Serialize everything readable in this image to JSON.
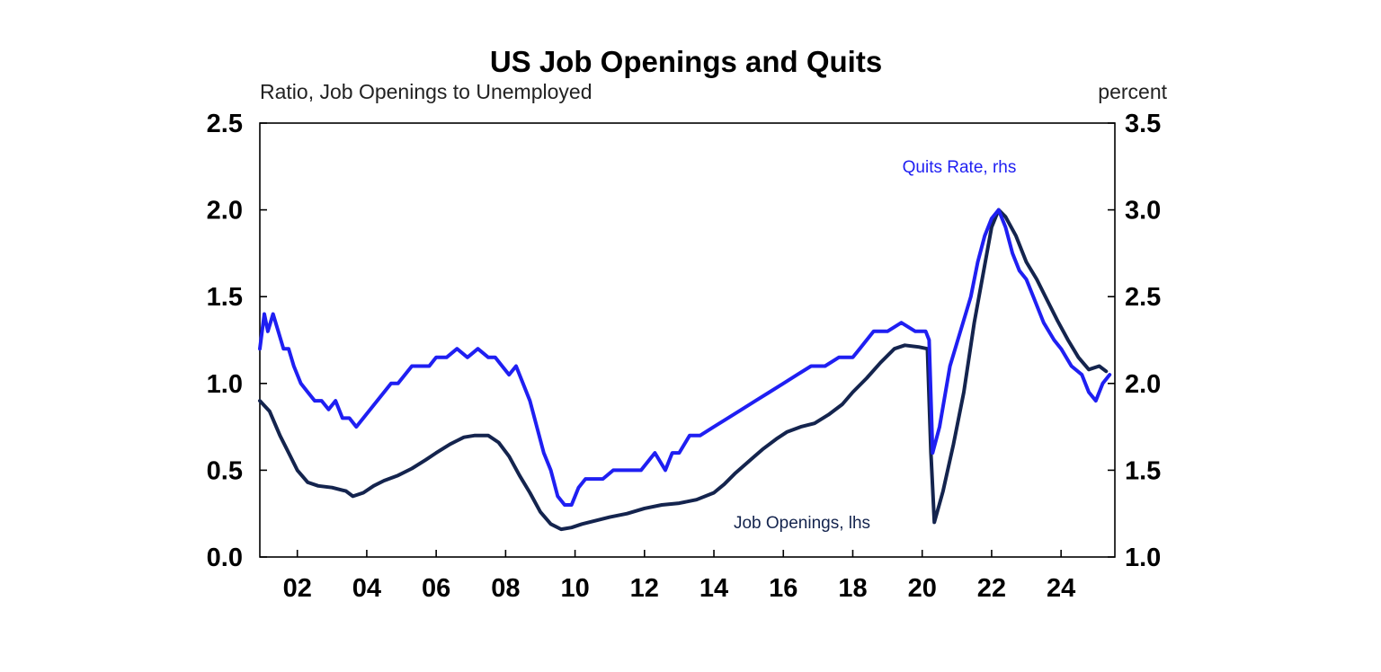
{
  "chart_data": {
    "type": "line",
    "title": "US Job Openings and Quits",
    "left_axis_label": "Ratio, Job Openings to Unemployed",
    "right_axis_label": "percent",
    "x_range": [
      2000.92,
      2025.55
    ],
    "x_ticks": [
      2002,
      2004,
      2006,
      2008,
      2010,
      2012,
      2014,
      2016,
      2018,
      2020,
      2022,
      2024
    ],
    "x_tick_labels": [
      "02",
      "04",
      "06",
      "08",
      "10",
      "12",
      "14",
      "16",
      "18",
      "20",
      "22",
      "24"
    ],
    "y_left": {
      "range": [
        0,
        2.5
      ],
      "ticks": [
        "0.0",
        "0.5",
        "1.0",
        "1.5",
        "2.0",
        "2.5"
      ]
    },
    "y_right": {
      "range": [
        1.0,
        3.5
      ],
      "ticks": [
        "1.0",
        "1.5",
        "2.0",
        "2.5",
        "3.0",
        "3.5"
      ]
    },
    "grid": false,
    "colors": {
      "job_openings": "#14244e",
      "quits_rate": "#1f1ff2",
      "axis": "#000000"
    },
    "annotations": [
      {
        "text": "Quits Rate, rhs",
        "series": "quits_rate"
      },
      {
        "text": "Job Openings, lhs",
        "series": "job_openings"
      }
    ],
    "series": [
      {
        "name": "Job Openings, lhs",
        "axis": "left",
        "x": [
          2000.92,
          2001.2,
          2001.5,
          2001.8,
          2002.0,
          2002.3,
          2002.6,
          2003.0,
          2003.4,
          2003.6,
          2003.9,
          2004.2,
          2004.5,
          2004.9,
          2005.3,
          2005.7,
          2006.0,
          2006.4,
          2006.8,
          2007.1,
          2007.5,
          2007.8,
          2008.1,
          2008.4,
          2008.7,
          2009.0,
          2009.3,
          2009.6,
          2009.9,
          2010.2,
          2010.6,
          2011.0,
          2011.5,
          2012.0,
          2012.5,
          2013.0,
          2013.5,
          2014.0,
          2014.3,
          2014.6,
          2015.0,
          2015.4,
          2015.8,
          2016.1,
          2016.5,
          2016.9,
          2017.3,
          2017.7,
          2018.0,
          2018.4,
          2018.8,
          2019.2,
          2019.5,
          2019.9,
          2020.15,
          2020.25,
          2020.35,
          2020.6,
          2020.9,
          2021.2,
          2021.5,
          2021.8,
          2022.0,
          2022.2,
          2022.4,
          2022.7,
          2023.0,
          2023.3,
          2023.6,
          2023.9,
          2024.2,
          2024.5,
          2024.8,
          2025.1,
          2025.3
        ],
        "values": [
          0.9,
          0.84,
          0.7,
          0.58,
          0.5,
          0.43,
          0.41,
          0.4,
          0.38,
          0.35,
          0.37,
          0.41,
          0.44,
          0.47,
          0.51,
          0.56,
          0.6,
          0.65,
          0.69,
          0.7,
          0.7,
          0.66,
          0.58,
          0.47,
          0.37,
          0.26,
          0.19,
          0.16,
          0.17,
          0.19,
          0.21,
          0.23,
          0.25,
          0.28,
          0.3,
          0.31,
          0.33,
          0.37,
          0.42,
          0.48,
          0.55,
          0.62,
          0.68,
          0.72,
          0.75,
          0.77,
          0.82,
          0.88,
          0.95,
          1.03,
          1.12,
          1.2,
          1.22,
          1.21,
          1.2,
          0.6,
          0.2,
          0.38,
          0.65,
          0.95,
          1.35,
          1.68,
          1.9,
          2.0,
          1.96,
          1.85,
          1.7,
          1.6,
          1.48,
          1.36,
          1.25,
          1.15,
          1.08,
          1.1,
          1.07
        ]
      },
      {
        "name": "Quits Rate, rhs",
        "axis": "right",
        "x": [
          2000.92,
          2001.05,
          2001.15,
          2001.3,
          2001.45,
          2001.6,
          2001.75,
          2001.9,
          2002.1,
          2002.3,
          2002.5,
          2002.7,
          2002.9,
          2003.1,
          2003.3,
          2003.5,
          2003.7,
          2003.9,
          2004.1,
          2004.3,
          2004.5,
          2004.7,
          2004.9,
          2005.1,
          2005.3,
          2005.6,
          2005.8,
          2006.0,
          2006.3,
          2006.6,
          2006.9,
          2007.2,
          2007.5,
          2007.7,
          2007.9,
          2008.1,
          2008.3,
          2008.5,
          2008.7,
          2008.9,
          2009.1,
          2009.3,
          2009.5,
          2009.7,
          2009.9,
          2010.1,
          2010.3,
          2010.5,
          2010.8,
          2011.1,
          2011.5,
          2011.9,
          2012.3,
          2012.6,
          2012.8,
          2013.0,
          2013.3,
          2013.6,
          2014.0,
          2014.4,
          2014.8,
          2015.2,
          2015.6,
          2016.0,
          2016.4,
          2016.8,
          2017.2,
          2017.6,
          2018.0,
          2018.2,
          2018.6,
          2019.0,
          2019.4,
          2019.8,
          2020.1,
          2020.2,
          2020.3,
          2020.5,
          2020.8,
          2021.1,
          2021.4,
          2021.6,
          2021.8,
          2022.0,
          2022.2,
          2022.4,
          2022.6,
          2022.8,
          2023.0,
          2023.2,
          2023.5,
          2023.8,
          2024.0,
          2024.3,
          2024.6,
          2024.8,
          2025.0,
          2025.2,
          2025.4
        ],
        "values": [
          2.2,
          2.4,
          2.3,
          2.4,
          2.3,
          2.2,
          2.2,
          2.1,
          2.0,
          1.95,
          1.9,
          1.9,
          1.85,
          1.9,
          1.8,
          1.8,
          1.75,
          1.8,
          1.85,
          1.9,
          1.95,
          2.0,
          2.0,
          2.05,
          2.1,
          2.1,
          2.1,
          2.15,
          2.15,
          2.2,
          2.15,
          2.2,
          2.15,
          2.15,
          2.1,
          2.05,
          2.1,
          2.0,
          1.9,
          1.75,
          1.6,
          1.5,
          1.35,
          1.3,
          1.3,
          1.4,
          1.45,
          1.45,
          1.45,
          1.5,
          1.5,
          1.5,
          1.6,
          1.5,
          1.6,
          1.6,
          1.7,
          1.7,
          1.75,
          1.8,
          1.85,
          1.9,
          1.95,
          2.0,
          2.05,
          2.1,
          2.1,
          2.15,
          2.15,
          2.2,
          2.3,
          2.3,
          2.35,
          2.3,
          2.3,
          2.25,
          1.6,
          1.75,
          2.1,
          2.3,
          2.5,
          2.7,
          2.85,
          2.95,
          3.0,
          2.9,
          2.75,
          2.65,
          2.6,
          2.5,
          2.35,
          2.25,
          2.2,
          2.1,
          2.05,
          1.95,
          1.9,
          2.0,
          2.05
        ]
      }
    ]
  }
}
